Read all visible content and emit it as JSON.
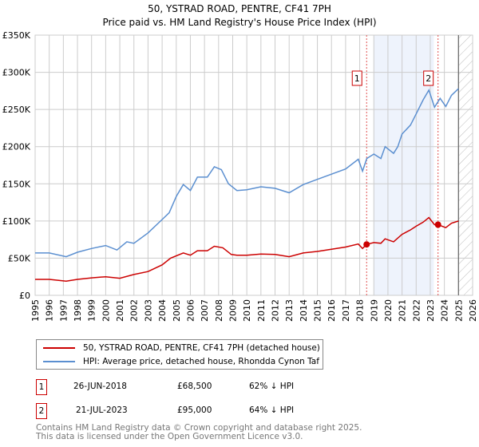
{
  "title_line1": "50, YSTRAD ROAD, PENTRE, CF41 7PH",
  "title_line2": "Price paid vs. HM Land Registry's House Price Index (HPI)",
  "legend": [
    {
      "label": "50, YSTRAD ROAD, PENTRE, CF41 7PH (detached house)",
      "color": "#cc0000"
    },
    {
      "label": "HPI: Average price, detached house, Rhondda Cynon Taf",
      "color": "#5b8fd0"
    }
  ],
  "transactions": [
    {
      "num": "1",
      "date": "26-JUN-2018",
      "price": "£68,500",
      "hpi": "62% ↓ HPI"
    },
    {
      "num": "2",
      "date": "21-JUL-2023",
      "price": "£95,000",
      "hpi": "64% ↓ HPI"
    }
  ],
  "footer_line1": "Contains HM Land Registry data © Crown copyright and database right 2025.",
  "footer_line2": "This data is licensed under the Open Government Licence v3.0.",
  "chart_data": {
    "type": "line",
    "xlim": [
      1995,
      2026
    ],
    "ylim": [
      0,
      350000
    ],
    "yticks": [
      0,
      50000,
      100000,
      150000,
      200000,
      250000,
      300000,
      350000
    ],
    "ytick_labels": [
      "£0",
      "£50K",
      "£100K",
      "£150K",
      "£200K",
      "£250K",
      "£300K",
      "£350K"
    ],
    "xticks": [
      1995,
      1996,
      1997,
      1998,
      1999,
      2000,
      2001,
      2002,
      2003,
      2004,
      2005,
      2006,
      2007,
      2008,
      2009,
      2010,
      2011,
      2012,
      2013,
      2014,
      2015,
      2016,
      2017,
      2018,
      2019,
      2020,
      2021,
      2022,
      2023,
      2024,
      2025,
      2026
    ],
    "grid": true,
    "shaded_range": [
      2019,
      2023.25
    ],
    "forecast_from": 2025,
    "sales": [
      {
        "label": "1",
        "x": 2018.49,
        "y": 68500
      },
      {
        "label": "2",
        "x": 2023.55,
        "y": 95000
      }
    ],
    "series": [
      {
        "name": "50, YSTRAD ROAD, PENTRE, CF41 7PH (detached house)",
        "color": "#cc0000",
        "x": [
          1995,
          1996,
          1997.2,
          1998,
          1999,
          2000,
          2001,
          2002,
          2003,
          2004,
          2004.6,
          2005.5,
          2006,
          2006.5,
          2007.2,
          2007.7,
          2008.3,
          2008.9,
          2009.3,
          2010,
          2011,
          2012,
          2013,
          2014,
          2015,
          2016,
          2017,
          2017.9,
          2018.2,
          2018.49,
          2019,
          2019.5,
          2019.8,
          2020.4,
          2021,
          2021.6,
          2022,
          2022.5,
          2022.9,
          2023.3,
          2023.55,
          2024.1,
          2024.5,
          2025
        ],
        "y": [
          21500,
          21500,
          19000,
          21500,
          23500,
          25000,
          23000,
          28000,
          32000,
          41000,
          50000,
          57000,
          54000,
          60000,
          60000,
          66000,
          64000,
          55000,
          54000,
          54000,
          55500,
          55000,
          52000,
          57000,
          59000,
          62000,
          65000,
          69000,
          63000,
          68500,
          71000,
          70000,
          76000,
          72000,
          82000,
          88000,
          93000,
          98500,
          104600,
          95000,
          95000,
          91000,
          97000,
          100000
        ]
      },
      {
        "name": "HPI: Average price, detached house, Rhondda Cynon Taf",
        "color": "#5b8fd0",
        "x": [
          1995,
          1996,
          1997.2,
          1998,
          1999,
          2000,
          2000.8,
          2001.5,
          2002,
          2003,
          2004,
          2004.5,
          2005,
          2005.5,
          2006,
          2006.5,
          2007.2,
          2007.7,
          2008.2,
          2008.7,
          2009.3,
          2010,
          2011,
          2012,
          2013,
          2014,
          2015,
          2016,
          2017,
          2017.9,
          2018.2,
          2018.5,
          2019,
          2019.5,
          2019.8,
          2020.4,
          2020.7,
          2021,
          2021.6,
          2022,
          2022.5,
          2022.9,
          2023.3,
          2023.7,
          2024.1,
          2024.5,
          2025
        ],
        "y": [
          57000,
          57000,
          52000,
          58000,
          63000,
          67000,
          61000,
          72000,
          70000,
          84000,
          102000,
          111000,
          133000,
          149000,
          141000,
          159000,
          159000,
          173000,
          169000,
          150000,
          141000,
          142000,
          146000,
          144000,
          138000,
          149000,
          156000,
          163000,
          170000,
          183000,
          167000,
          184000,
          190000,
          184000,
          200000,
          191000,
          200000,
          217000,
          229000,
          244000,
          263000,
          276000,
          253000,
          265000,
          254000,
          269000,
          278000
        ]
      }
    ]
  }
}
